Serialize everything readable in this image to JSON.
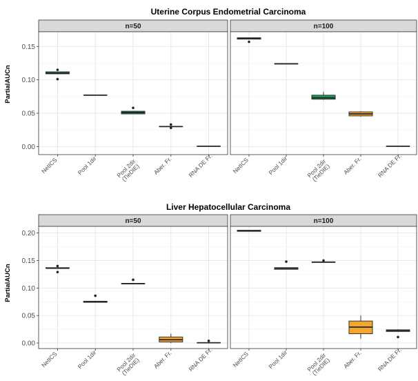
{
  "chart_data": [
    {
      "type": "boxplot",
      "title": "Uterine Corpus Endometrial Carcinoma",
      "ylabel": "PartialAUCn",
      "xlabel": "",
      "ylim": [
        -0.012,
        0.172
      ],
      "yticks": [
        0.0,
        0.05,
        0.1,
        0.15
      ],
      "ytick_labels": [
        "0.00",
        "0.05",
        "0.10",
        "0.15"
      ],
      "categories": [
        [
          "NetICS"
        ],
        [
          "Pool 1dir"
        ],
        [
          "Pool 2dir",
          "(TieDIE)"
        ],
        [
          "Aber. Fr."
        ],
        [
          "RNA DE Fr."
        ]
      ],
      "fill_colors": [
        "#1a9850",
        "#1a9850",
        "#1a9850",
        "#f4a52c",
        "#f4a52c"
      ],
      "grid": true,
      "legend": "none",
      "panels": [
        {
          "strip": "n=50",
          "boxes": [
            {
              "q1": 0.109,
              "median": 0.11,
              "q3": 0.112,
              "whislo": 0.109,
              "whishi": 0.112,
              "fliers": [
                0.115,
                0.101
              ]
            },
            {
              "q1": 0.077,
              "median": 0.077,
              "q3": 0.077,
              "whislo": 0.077,
              "whishi": 0.077,
              "fliers": []
            },
            {
              "q1": 0.049,
              "median": 0.051,
              "q3": 0.053,
              "whislo": 0.049,
              "whishi": 0.053,
              "fliers": [
                0.058
              ]
            },
            {
              "q1": 0.03,
              "median": 0.03,
              "q3": 0.03,
              "whislo": 0.03,
              "whishi": 0.03,
              "fliers": [
                0.033,
                0.028
              ]
            },
            {
              "q1": 0.0005,
              "median": 0.0005,
              "q3": 0.0005,
              "whislo": 0.0005,
              "whishi": 0.0005,
              "fliers": []
            }
          ]
        },
        {
          "strip": "n=100",
          "boxes": [
            {
              "q1": 0.161,
              "median": 0.162,
              "q3": 0.163,
              "whislo": 0.161,
              "whishi": 0.163,
              "fliers": [
                0.157
              ]
            },
            {
              "q1": 0.124,
              "median": 0.124,
              "q3": 0.124,
              "whislo": 0.124,
              "whishi": 0.124,
              "fliers": []
            },
            {
              "q1": 0.071,
              "median": 0.073,
              "q3": 0.077,
              "whislo": 0.07,
              "whishi": 0.082,
              "fliers": []
            },
            {
              "q1": 0.046,
              "median": 0.049,
              "q3": 0.052,
              "whislo": 0.045,
              "whishi": 0.053,
              "fliers": []
            },
            {
              "q1": 0.0005,
              "median": 0.0005,
              "q3": 0.0005,
              "whislo": 0.0005,
              "whishi": 0.0005,
              "fliers": []
            }
          ]
        }
      ]
    },
    {
      "type": "boxplot",
      "title": "Liver Hepatocellular Carcinoma",
      "ylabel": "PartialAUCn",
      "xlabel": "",
      "ylim": [
        -0.01,
        0.212
      ],
      "yticks": [
        0.0,
        0.05,
        0.1,
        0.15,
        0.2
      ],
      "ytick_labels": [
        "0.00",
        "0.05",
        "0.10",
        "0.15",
        "0.20"
      ],
      "categories": [
        [
          "NetICS"
        ],
        [
          "Pool 1dir"
        ],
        [
          "Pool 2dir",
          "(TieDIE)"
        ],
        [
          "Aber. Fr."
        ],
        [
          "RNA DE Fr."
        ]
      ],
      "fill_colors": [
        "#1a9850",
        "#f4a52c",
        "#1a9850",
        "#f4a52c",
        "#1a9850"
      ],
      "grid": true,
      "legend": "none",
      "panels": [
        {
          "strip": "n=50",
          "boxes": [
            {
              "q1": 0.136,
              "median": 0.136,
              "q3": 0.137,
              "whislo": 0.136,
              "whishi": 0.137,
              "fliers": [
                0.14,
                0.129
              ]
            },
            {
              "q1": 0.074,
              "median": 0.075,
              "q3": 0.076,
              "whislo": 0.074,
              "whishi": 0.076,
              "fliers": [
                0.086
              ]
            },
            {
              "q1": 0.108,
              "median": 0.108,
              "q3": 0.108,
              "whislo": 0.108,
              "whishi": 0.108,
              "fliers": [
                0.115
              ]
            },
            {
              "q1": 0.002,
              "median": 0.006,
              "q3": 0.011,
              "whislo": 0.0,
              "whishi": 0.017,
              "fliers": []
            },
            {
              "q1": 0.0005,
              "median": 0.0005,
              "q3": 0.0005,
              "whislo": 0.0005,
              "whishi": 0.0005,
              "fliers": [
                0.004
              ]
            }
          ]
        },
        {
          "strip": "n=100",
          "boxes": [
            {
              "q1": 0.203,
              "median": 0.204,
              "q3": 0.205,
              "whislo": 0.203,
              "whishi": 0.205,
              "fliers": []
            },
            {
              "q1": 0.134,
              "median": 0.136,
              "q3": 0.137,
              "whislo": 0.134,
              "whishi": 0.137,
              "fliers": [
                0.148
              ]
            },
            {
              "q1": 0.147,
              "median": 0.147,
              "q3": 0.147,
              "whislo": 0.147,
              "whishi": 0.147,
              "fliers": [
                0.15
              ]
            },
            {
              "q1": 0.017,
              "median": 0.029,
              "q3": 0.04,
              "whislo": 0.008,
              "whishi": 0.05,
              "fliers": []
            },
            {
              "q1": 0.021,
              "median": 0.023,
              "q3": 0.024,
              "whislo": 0.021,
              "whishi": 0.025,
              "fliers": [
                0.011
              ]
            }
          ]
        }
      ]
    }
  ]
}
